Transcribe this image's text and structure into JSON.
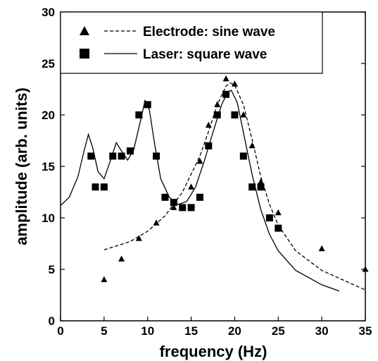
{
  "chart_data": {
    "type": "scatter",
    "xlabel": "frequency (Hz)",
    "ylabel": "amplitude (arb. units)",
    "xlim": [
      0,
      35
    ],
    "ylim": [
      0,
      30
    ],
    "x_ticks": [
      "0",
      "5",
      "10",
      "15",
      "20",
      "25",
      "30",
      "35"
    ],
    "y_ticks": [
      "0",
      "5",
      "10",
      "15",
      "20",
      "25",
      "30"
    ],
    "grid": false,
    "legend_position": "top-right",
    "legend": [
      {
        "marker": "triangle",
        "line": "dashed",
        "label": "Electrode: sine wave"
      },
      {
        "marker": "square",
        "line": "solid",
        "label": "Laser: square wave"
      }
    ],
    "series": [
      {
        "name": "Electrode: sine wave",
        "marker": "triangle",
        "points": [
          [
            5,
            4
          ],
          [
            7,
            6
          ],
          [
            9,
            8
          ],
          [
            11,
            9.5
          ],
          [
            13,
            11
          ],
          [
            15,
            13
          ],
          [
            16,
            15.5
          ],
          [
            17,
            19
          ],
          [
            18,
            21
          ],
          [
            19,
            23.5
          ],
          [
            20,
            23
          ],
          [
            21,
            20
          ],
          [
            22,
            17
          ],
          [
            23,
            13.5
          ],
          [
            25,
            10.5
          ],
          [
            30,
            7
          ],
          [
            35,
            5
          ]
        ]
      },
      {
        "name": "Laser: square wave",
        "marker": "square",
        "points": [
          [
            3.5,
            16
          ],
          [
            4,
            13
          ],
          [
            5,
            13
          ],
          [
            6,
            16
          ],
          [
            7,
            16
          ],
          [
            8,
            16.5
          ],
          [
            9,
            20
          ],
          [
            10,
            21
          ],
          [
            11,
            16
          ],
          [
            12,
            12
          ],
          [
            13,
            11.5
          ],
          [
            14,
            11
          ],
          [
            15,
            11
          ],
          [
            16,
            12
          ],
          [
            17,
            17
          ],
          [
            18,
            20
          ],
          [
            19,
            22
          ],
          [
            20,
            20
          ],
          [
            21,
            16
          ],
          [
            22,
            13
          ],
          [
            23,
            13
          ],
          [
            24,
            10
          ],
          [
            25,
            9
          ]
        ]
      }
    ],
    "fit_curves": [
      {
        "name": "Electrode fit",
        "style": "dashed",
        "points": [
          [
            5,
            6.9
          ],
          [
            8,
            7.7
          ],
          [
            10,
            8.7
          ],
          [
            12,
            10.2
          ],
          [
            14,
            12.5
          ],
          [
            16,
            16
          ],
          [
            17,
            18.4
          ],
          [
            18,
            21
          ],
          [
            19,
            22.8
          ],
          [
            19.5,
            23.1
          ],
          [
            20,
            22.9
          ],
          [
            21,
            21
          ],
          [
            22,
            17.6
          ],
          [
            23,
            14
          ],
          [
            24,
            11.3
          ],
          [
            25,
            9.3
          ],
          [
            27,
            6.8
          ],
          [
            30,
            4.9
          ],
          [
            35,
            3
          ]
        ]
      },
      {
        "name": "Laser fit",
        "style": "solid",
        "points": [
          [
            0,
            11.2
          ],
          [
            1,
            12
          ],
          [
            2,
            14
          ],
          [
            2.7,
            16.5
          ],
          [
            3.2,
            18.1
          ],
          [
            3.7,
            16.8
          ],
          [
            4.3,
            14.5
          ],
          [
            5,
            13.8
          ],
          [
            5.7,
            15.5
          ],
          [
            6.4,
            17.3
          ],
          [
            7,
            16.5
          ],
          [
            7.7,
            15.6
          ],
          [
            8.4,
            16.6
          ],
          [
            9.2,
            19.5
          ],
          [
            9.7,
            21.4
          ],
          [
            10.2,
            20.5
          ],
          [
            10.8,
            17.2
          ],
          [
            11.5,
            13.8
          ],
          [
            12.5,
            12
          ],
          [
            13.5,
            11.3
          ],
          [
            14.5,
            11.6
          ],
          [
            15.5,
            13
          ],
          [
            16.5,
            15.5
          ],
          [
            17.5,
            18.3
          ],
          [
            18.5,
            21
          ],
          [
            19.2,
            22.2
          ],
          [
            19.6,
            22.4
          ],
          [
            20.3,
            21.2
          ],
          [
            21,
            18.3
          ],
          [
            22,
            14.2
          ],
          [
            23,
            10.8
          ],
          [
            24,
            8.4
          ],
          [
            25,
            6.8
          ],
          [
            27,
            4.9
          ],
          [
            30,
            3.5
          ],
          [
            32,
            2.9
          ]
        ]
      }
    ]
  }
}
